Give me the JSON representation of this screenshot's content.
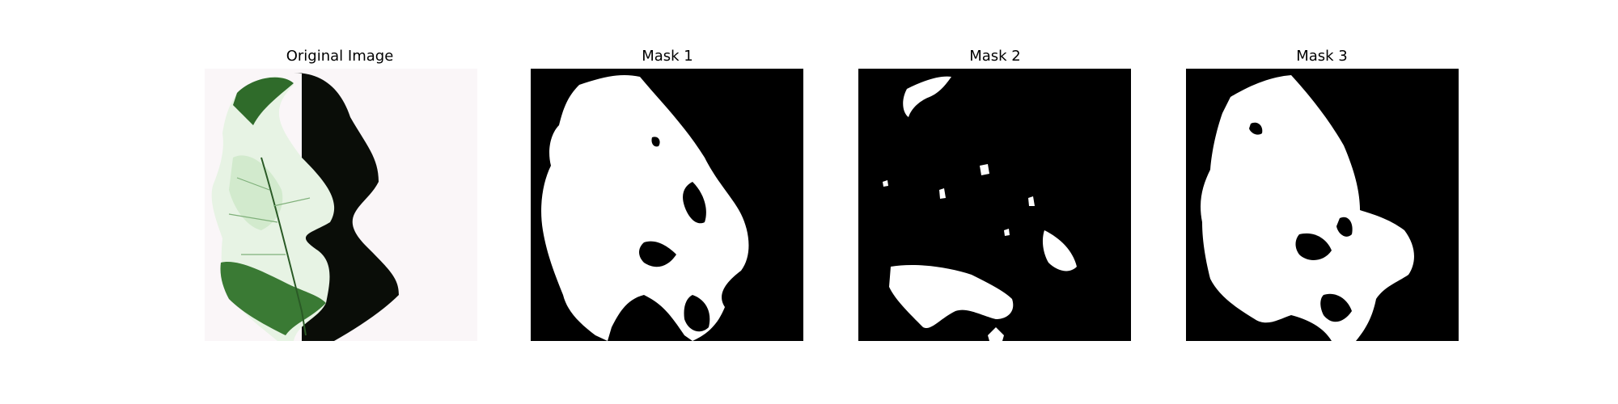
{
  "figure": {
    "panels": [
      {
        "title": "Original Image",
        "kind": "photo"
      },
      {
        "title": "Mask 1",
        "kind": "mask"
      },
      {
        "title": "Mask 2",
        "kind": "mask"
      },
      {
        "title": "Mask 3",
        "kind": "mask"
      }
    ]
  },
  "colors": {
    "mask_background": "#000000",
    "mask_foreground": "#ffffff",
    "leaf_dark": "#2f6b2a",
    "leaf_light": "#dff0dc",
    "shadow": "#0a0d08",
    "paper": "#faf6f8"
  }
}
